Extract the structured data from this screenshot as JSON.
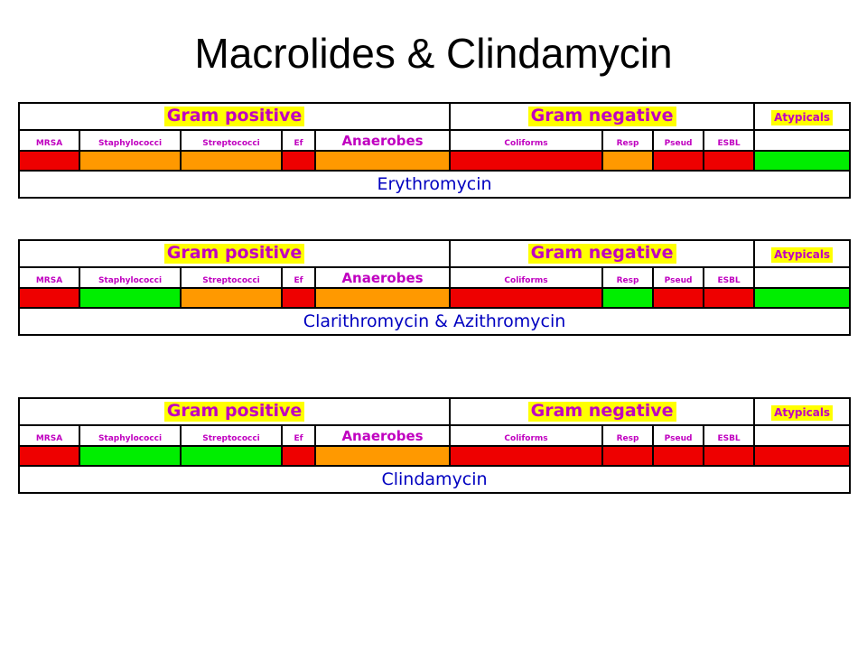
{
  "title": "Macrolides & Clindamycin",
  "labels": {
    "gram_positive": "Gram positive",
    "gram_negative": "Gram negative",
    "atypicals": "Atypicals",
    "organisms": [
      "MRSA",
      "Staphylococci",
      "Streptococci",
      "Ef",
      "Anaerobes",
      "Coliforms",
      "Resp",
      "Pseud",
      "ESBL",
      ""
    ]
  },
  "colors": {
    "red": "#ee0000",
    "orange": "#ff9900",
    "green": "#00ee00",
    "header_highlight": "#ffff00",
    "header_text": "#c000c0",
    "drug_text": "#0000c0"
  },
  "drugs": [
    {
      "name": "Erythromycin",
      "coverage": [
        "red",
        "orange",
        "orange",
        "red",
        "orange",
        "red",
        "orange",
        "red",
        "red",
        "green"
      ]
    },
    {
      "name": "Clarithromycin & Azithromycin",
      "coverage": [
        "red",
        "green",
        "orange",
        "red",
        "orange",
        "red",
        "green",
        "red",
        "red",
        "green"
      ]
    },
    {
      "name": "Clindamycin",
      "coverage": [
        "red",
        "green",
        "green",
        "red",
        "orange",
        "red",
        "red",
        "red",
        "red",
        "red"
      ]
    }
  ]
}
